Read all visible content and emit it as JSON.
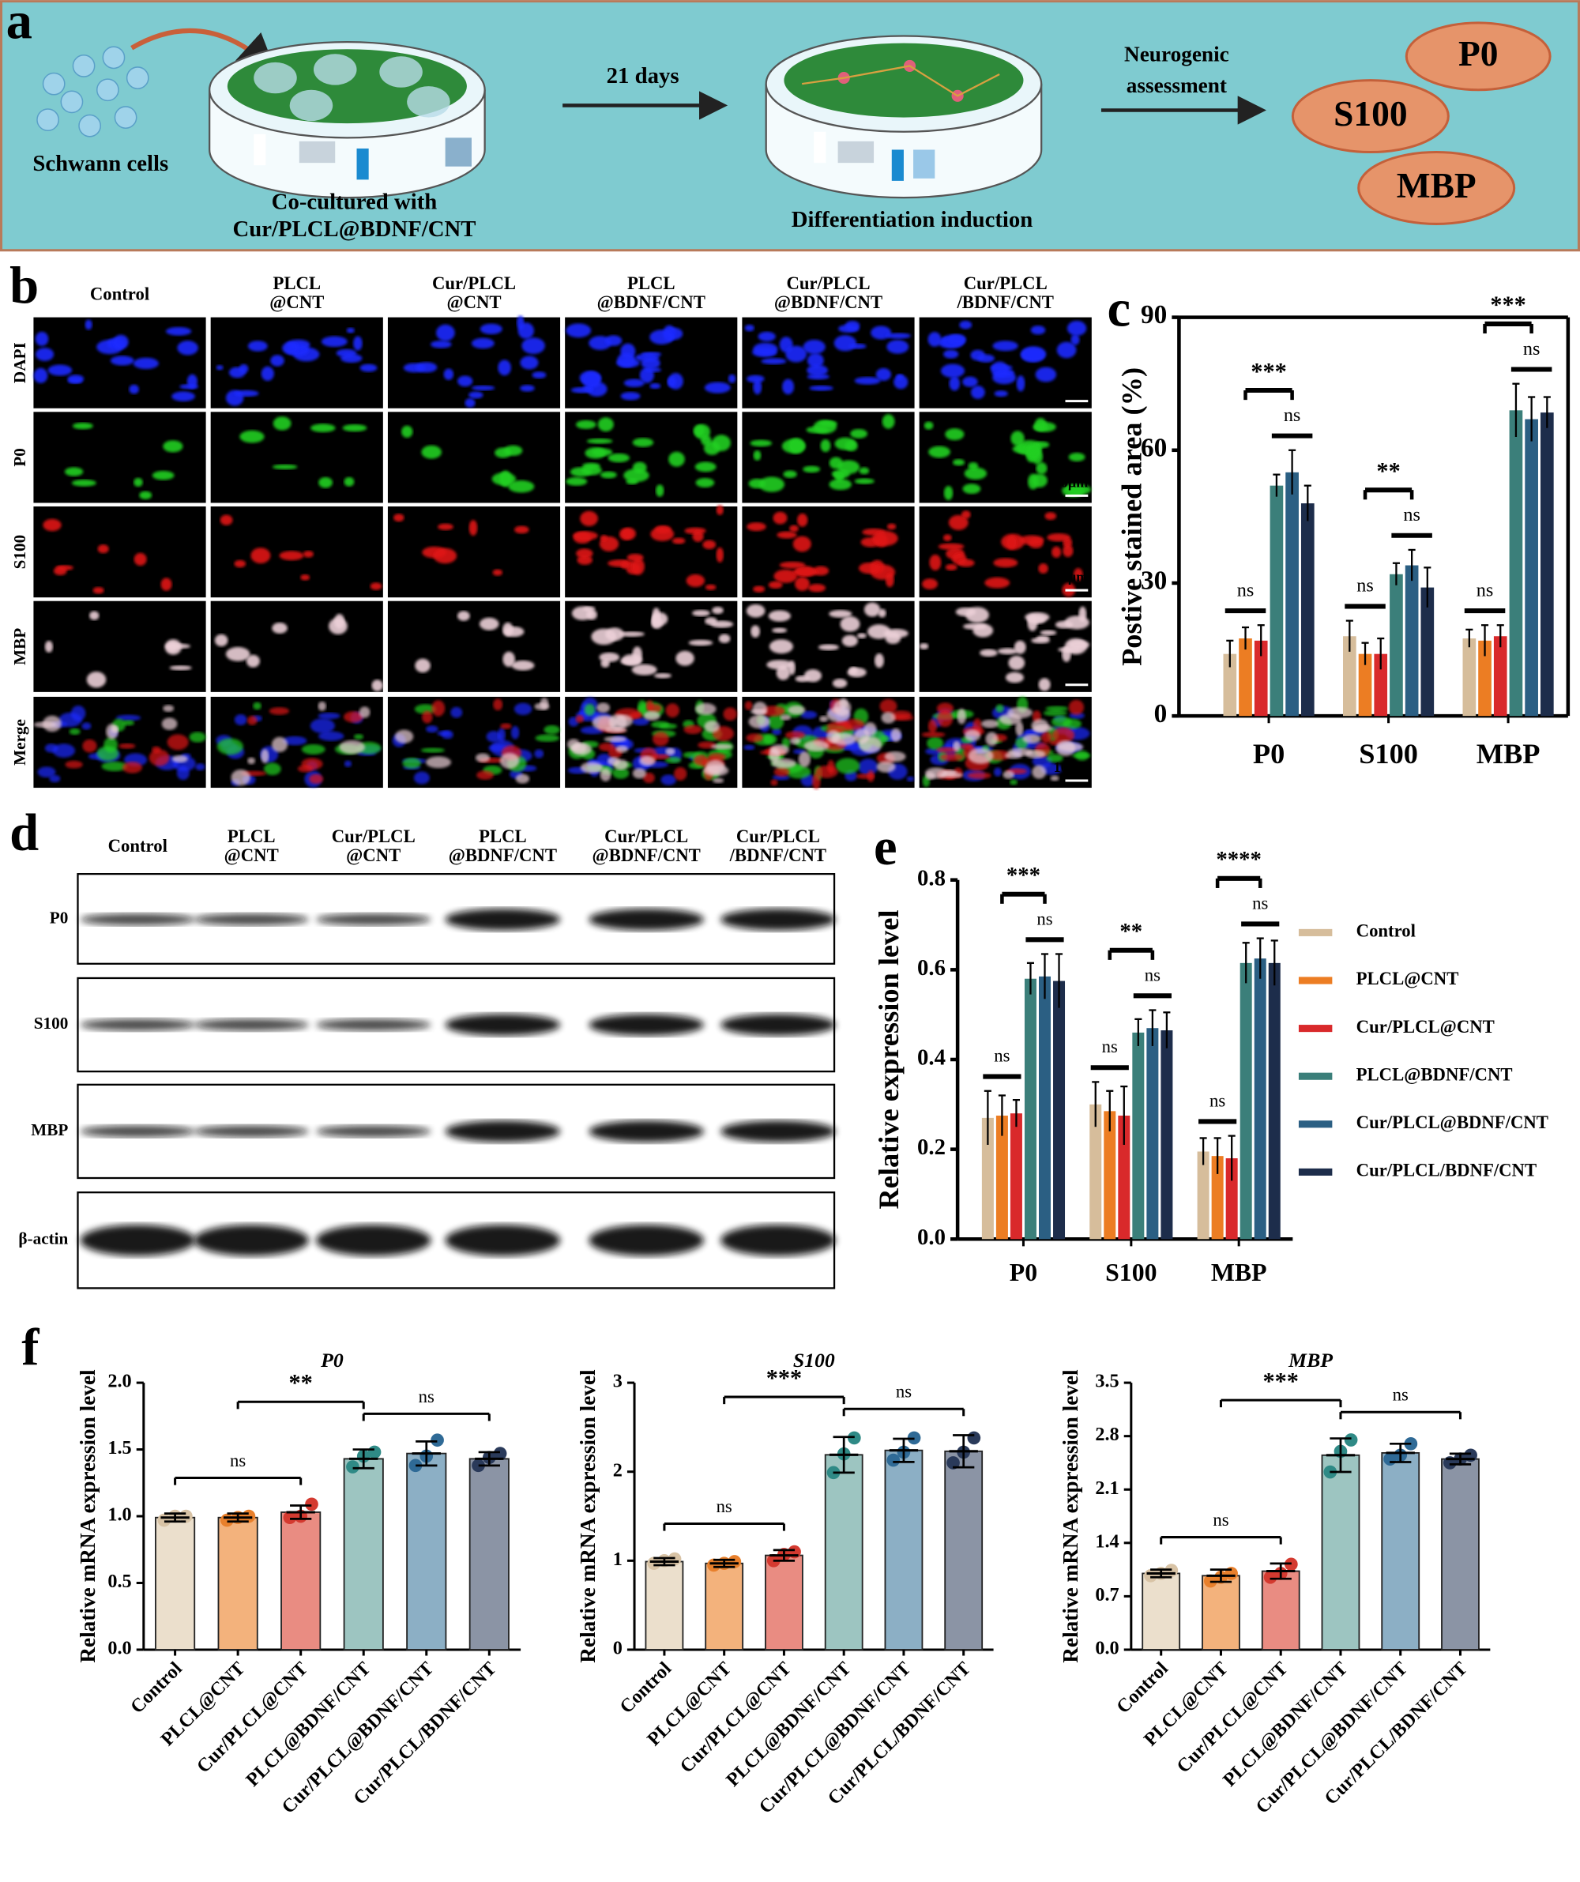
{
  "panel_labels": [
    "a",
    "b",
    "c",
    "d",
    "e",
    "f"
  ],
  "schematic": {
    "cells_label": "Schwann cells",
    "step1": [
      "Co-cultured with",
      "Cur/PLCL@BDNF/CNT"
    ],
    "arrow1": "21 days",
    "step2": "Differentiation induction",
    "arrow2": [
      "Neurogenic",
      "assessment"
    ],
    "markers": [
      "P0",
      "S100",
      "MBP"
    ]
  },
  "microscopy": {
    "groups": [
      [
        "Control"
      ],
      [
        "PLCL",
        "@CNT"
      ],
      [
        "Cur/PLCL",
        "@CNT"
      ],
      [
        "PLCL",
        "@BDNF/CNT"
      ],
      [
        "Cur/PLCL",
        "@BDNF/CNT"
      ],
      [
        "Cur/PLCL",
        "/BDNF/CNT"
      ]
    ],
    "channels": [
      "DAPI",
      "P0",
      "S100",
      "MBP",
      "Merge"
    ],
    "scale_bar": "10μm"
  },
  "western_blot": {
    "groups": [
      [
        "Control"
      ],
      [
        "PLCL",
        "@CNT"
      ],
      [
        "Cur/PLCL",
        "@CNT"
      ],
      [
        "PLCL",
        "@BDNF/CNT"
      ],
      [
        "Cur/PLCL",
        "@BDNF/CNT"
      ],
      [
        "Cur/PLCL",
        "/BDNF/CNT"
      ]
    ],
    "bands": [
      "P0",
      "S100",
      "MBP",
      "β-actin"
    ]
  },
  "chart_data": [
    {
      "type": "bar",
      "ylabel": "Postive stained area (%)",
      "categories": [
        "P0",
        "S100",
        "MBP"
      ],
      "ylim": [
        0,
        90
      ],
      "yticks": [
        0,
        30,
        60,
        90
      ],
      "series": [
        {
          "color": "#d6bd9b",
          "values": [
            14,
            18,
            17.5
          ],
          "errors": [
            3,
            3.5,
            2
          ]
        },
        {
          "color": "#ec7d23",
          "values": [
            17.5,
            14,
            17
          ],
          "errors": [
            2.5,
            2.5,
            3.5
          ]
        },
        {
          "color": "#d9292b",
          "values": [
            17,
            14,
            18
          ],
          "errors": [
            3.5,
            3.5,
            2.5
          ]
        },
        {
          "color": "#3b7f7a",
          "values": [
            52,
            32,
            69
          ],
          "errors": [
            2.5,
            2.5,
            6
          ]
        },
        {
          "color": "#2b5f83",
          "values": [
            55,
            34,
            67
          ],
          "errors": [
            5,
            3.5,
            5
          ]
        },
        {
          "color": "#1d2d4b",
          "values": [
            48,
            29,
            68.5
          ],
          "errors": [
            4,
            4.5,
            3.5
          ]
        }
      ],
      "annotations": [
        [
          "ns",
          "***",
          "ns"
        ],
        [
          "ns",
          "**",
          "ns"
        ],
        [
          "ns",
          "***",
          "ns"
        ]
      ]
    },
    {
      "type": "bar",
      "ylabel": "Relative expression level",
      "categories": [
        "P0",
        "S100",
        "MBP"
      ],
      "ylim": [
        0,
        0.8
      ],
      "yticks": [
        {
          "value": 0,
          "label": "0.0"
        },
        0.2,
        0.4,
        0.6,
        0.8
      ],
      "legend": "right",
      "series": [
        {
          "name": "Control",
          "color": "#d6bd9b",
          "values": [
            0.27,
            0.3,
            0.195
          ],
          "errors": [
            0.06,
            0.05,
            0.03
          ]
        },
        {
          "name": "PLCL@CNT",
          "color": "#ec7d23",
          "values": [
            0.275,
            0.285,
            0.185
          ],
          "errors": [
            0.045,
            0.045,
            0.04
          ]
        },
        {
          "name": "Cur/PLCL@CNT",
          "color": "#d9292b",
          "values": [
            0.28,
            0.275,
            0.18
          ],
          "errors": [
            0.03,
            0.065,
            0.05
          ]
        },
        {
          "name": "PLCL@BDNF/CNT",
          "color": "#3b7f7a",
          "values": [
            0.58,
            0.46,
            0.615
          ],
          "errors": [
            0.035,
            0.03,
            0.045
          ]
        },
        {
          "name": "Cur/PLCL@BDNF/CNT",
          "color": "#2b5f83",
          "values": [
            0.585,
            0.47,
            0.625
          ],
          "errors": [
            0.05,
            0.04,
            0.045
          ]
        },
        {
          "name": "Cur/PLCL/BDNF/CNT",
          "color": "#1d2d4b",
          "values": [
            0.575,
            0.465,
            0.615
          ],
          "errors": [
            0.06,
            0.04,
            0.05
          ]
        }
      ],
      "annotations": [
        [
          "ns",
          "***",
          "ns"
        ],
        [
          "ns",
          "**",
          "ns"
        ],
        [
          "ns",
          "****",
          "ns"
        ]
      ]
    },
    {
      "type": "bar",
      "title": "P0",
      "ylabel": "Relative mRNA expression level",
      "categories": [
        "Control",
        "PLCL@CNT",
        "Cur/PLCL@CNT",
        "PLCL@BDNF/CNT",
        "Cur/PLCL@BDNF/CNT",
        "Cur/PLCL/BDNF/CNT"
      ],
      "values": [
        0.99,
        0.99,
        1.03,
        1.43,
        1.47,
        1.43
      ],
      "errors": [
        0.03,
        0.03,
        0.05,
        0.07,
        0.09,
        0.05
      ],
      "points": [
        [
          0.97,
          1.0,
          1.0
        ],
        [
          0.97,
          0.99,
          1.0
        ],
        [
          0.99,
          1.0,
          1.09
        ],
        [
          1.37,
          1.45,
          1.48
        ],
        [
          1.38,
          1.45,
          1.57
        ],
        [
          1.38,
          1.44,
          1.47
        ]
      ],
      "colors": [
        "#ebdfcc",
        "#f3b27c",
        "#e98c82",
        "#9dc5c1",
        "#8cafc5",
        "#8b94a5"
      ],
      "point_colors": [
        "#d8c3a5",
        "#e8802c",
        "#d43a30",
        "#2f8a86",
        "#2f6a96",
        "#2a3a5a"
      ],
      "ylim": [
        0,
        2
      ],
      "yticks": [
        {
          "value": 0,
          "label": "0.0"
        },
        0.5,
        {
          "value": 1,
          "label": "1.0"
        },
        1.5,
        {
          "value": 2,
          "label": "2.0"
        }
      ],
      "annotations": [
        "ns",
        "**",
        "ns"
      ]
    },
    {
      "type": "bar",
      "title": "S100",
      "ylabel": "Relative mRNA expression level",
      "categories": [
        "Control",
        "PLCL@CNT",
        "Cur/PLCL@CNT",
        "PLCL@BDNF/CNT",
        "Cur/PLCL@BDNF/CNT",
        "Cur/PLCL/BDNF/CNT"
      ],
      "values": [
        0.99,
        0.97,
        1.06,
        2.19,
        2.24,
        2.23
      ],
      "errors": [
        0.04,
        0.04,
        0.06,
        0.2,
        0.13,
        0.18
      ],
      "points": [
        [
          0.97,
          1.0,
          1.02
        ],
        [
          0.95,
          0.97,
          0.99
        ],
        [
          1.0,
          1.07,
          1.1
        ],
        [
          1.99,
          2.2,
          2.38
        ],
        [
          2.13,
          2.22,
          2.38
        ],
        [
          2.1,
          2.22,
          2.38
        ]
      ],
      "colors": [
        "#ebdfcc",
        "#f3b27c",
        "#e98c82",
        "#9dc5c1",
        "#8cafc5",
        "#8b94a5"
      ],
      "point_colors": [
        "#d8c3a5",
        "#e8802c",
        "#d43a30",
        "#2f8a86",
        "#2f6a96",
        "#2a3a5a"
      ],
      "ylim": [
        0,
        3
      ],
      "yticks": [
        0,
        1,
        2,
        3
      ],
      "annotations": [
        "ns",
        "***",
        "ns"
      ]
    },
    {
      "type": "bar",
      "title": "MBP",
      "ylabel": "Relative mRNA expression level",
      "categories": [
        "Control",
        "PLCL@CNT",
        "Cur/PLCL@CNT",
        "PLCL@BDNF/CNT",
        "Cur/PLCL@BDNF/CNT",
        "Cur/PLCL/BDNF/CNT"
      ],
      "values": [
        1.0,
        0.97,
        1.03,
        2.55,
        2.58,
        2.5
      ],
      "errors": [
        0.05,
        0.08,
        0.1,
        0.22,
        0.12,
        0.07
      ],
      "points": [
        [
          0.97,
          1.0,
          1.04
        ],
        [
          0.9,
          0.95,
          1.0
        ],
        [
          0.95,
          1.0,
          1.12
        ],
        [
          2.33,
          2.6,
          2.75
        ],
        [
          2.5,
          2.55,
          2.7
        ],
        [
          2.45,
          2.5,
          2.55
        ]
      ],
      "colors": [
        "#ebdfcc",
        "#f3b27c",
        "#e98c82",
        "#9dc5c1",
        "#8cafc5",
        "#8b94a5"
      ],
      "point_colors": [
        "#d8c3a5",
        "#e8802c",
        "#d43a30",
        "#2f8a86",
        "#2f6a96",
        "#2a3a5a"
      ],
      "ylim": [
        0,
        3.5
      ],
      "yticks": [
        {
          "value": 0,
          "label": "0.0"
        },
        0.7,
        1.4,
        2.1,
        2.8,
        3.5
      ],
      "annotations": [
        "ns",
        "***",
        "ns"
      ]
    }
  ]
}
